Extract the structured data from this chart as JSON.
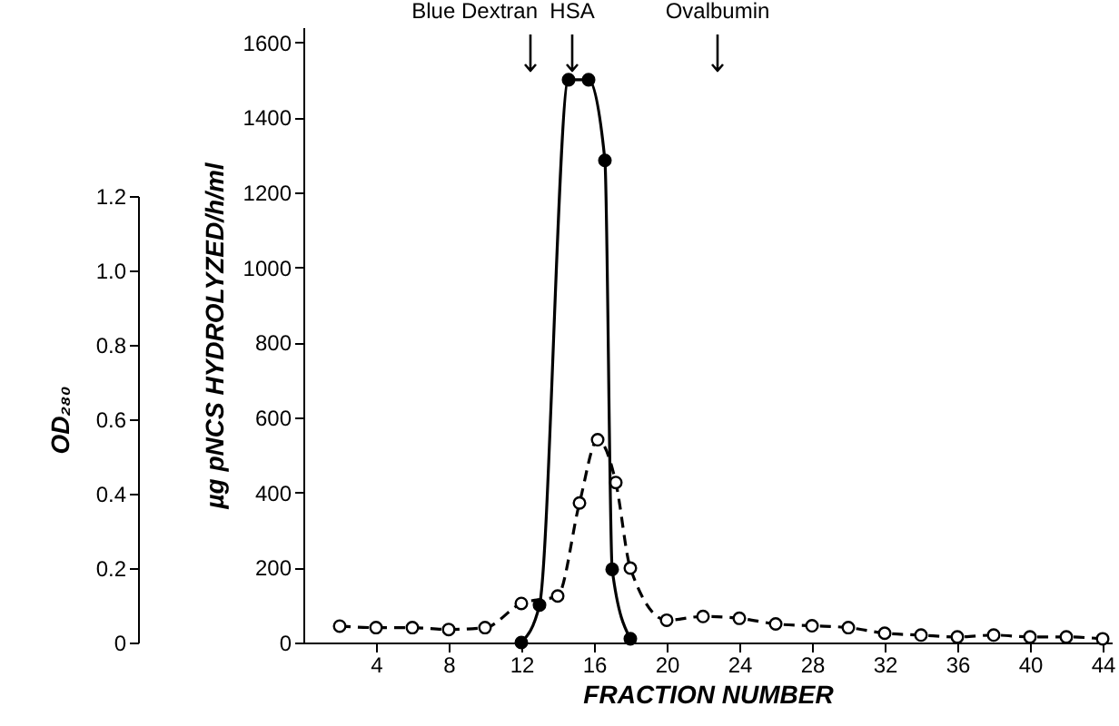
{
  "chart_data": {
    "type": "line",
    "xlabel": "FRACTION NUMBER",
    "ylabel": "µg pNCS HYDROLYZED/h/ml",
    "y2label": "OD₂₈₀",
    "xlim": [
      0,
      44.5
    ],
    "xticks": [
      4,
      8,
      12,
      16,
      20,
      24,
      28,
      32,
      36,
      40,
      44
    ],
    "ylim": [
      0,
      1640
    ],
    "yticks": [
      0,
      200,
      400,
      600,
      800,
      1000,
      1200,
      1400,
      1600
    ],
    "y2lim": [
      0,
      1.2
    ],
    "y2ticks": [
      0,
      0.2,
      0.4,
      0.6,
      0.8,
      {
        "value": 1,
        "label": "1.0"
      },
      1.2
    ],
    "marker": "circle",
    "grid": false,
    "series": [
      {
        "color": "#000000",
        "line_style": "dashed",
        "axis": "y2",
        "x": [
          2,
          4,
          6,
          8,
          10,
          12,
          14,
          15.2,
          16.2,
          17.2,
          18,
          20,
          22,
          24,
          26,
          28,
          30,
          32,
          34,
          36,
          38,
          40,
          42,
          44
        ],
        "values": [
          0.044,
          0.04,
          0.04,
          0.035,
          0.04,
          0.105,
          0.125,
          0.375,
          0.545,
          0.43,
          0.2,
          0.06,
          0.07,
          0.065,
          0.05,
          0.045,
          0.04,
          0.025,
          0.02,
          0.015,
          0.02,
          0.015,
          0.015,
          0.01
        ]
      },
      {
        "color": "#000000",
        "line_style": "solid",
        "axis": "y",
        "x": [
          12,
          13,
          14.6,
          15.7,
          16.6,
          17,
          18
        ],
        "values": [
          0,
          100,
          1500,
          1500,
          1285,
          195,
          10
        ]
      }
    ],
    "ref_lines": [
      {
        "axis": "x",
        "value": 12.5,
        "label": "Blue Dextran"
      },
      {
        "axis": "x",
        "value": 14.8,
        "label": "HSA"
      },
      {
        "axis": "x",
        "value": 22.8,
        "label": "Ovalbumin"
      }
    ]
  }
}
